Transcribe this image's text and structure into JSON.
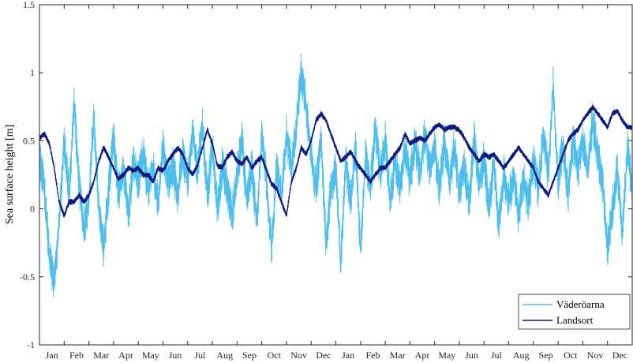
{
  "chart_data": {
    "type": "line",
    "ylabel": "Sea surface height [m]",
    "ylim": [
      -1,
      1.5
    ],
    "yticks": [
      -1,
      -0.5,
      0,
      0.5,
      1,
      1.5
    ],
    "ytick_labels": [
      "-1",
      "-0.5",
      "0",
      "0.5",
      "1",
      "1.5"
    ],
    "xlim_months": [
      0,
      24
    ],
    "xtick_labels": [
      "Jan",
      "Feb",
      "Mar",
      "Apr",
      "May",
      "Jun",
      "Jul",
      "Aug",
      "Sep",
      "Oct",
      "Nov",
      "Dec",
      "Jan",
      "Feb",
      "Mar",
      "Apr",
      "May",
      "Jun",
      "Jul",
      "Aug",
      "Sep",
      "Oct",
      "Nov",
      "Dec"
    ],
    "grid": false,
    "legend": "bottom-right",
    "colors": {
      "vaderoarna": "#4DBEEE",
      "landsort": "#0D1A80"
    },
    "series": [
      {
        "name": "Väderöarna",
        "x": [
          0,
          0.2,
          0.4,
          0.6,
          0.8,
          1,
          1.2,
          1.4,
          1.6,
          1.8,
          2,
          2.2,
          2.4,
          2.6,
          2.8,
          3,
          3.2,
          3.4,
          3.6,
          3.8,
          4,
          4.2,
          4.4,
          4.6,
          4.8,
          5,
          5.2,
          5.4,
          5.6,
          5.8,
          6,
          6.2,
          6.4,
          6.6,
          6.8,
          7,
          7.2,
          7.4,
          7.6,
          7.8,
          8,
          8.2,
          8.4,
          8.6,
          8.8,
          9,
          9.2,
          9.4,
          9.6,
          9.8,
          10,
          10.2,
          10.4,
          10.6,
          10.8,
          11,
          11.2,
          11.4,
          11.6,
          11.8,
          12,
          12.2,
          12.4,
          12.6,
          12.8,
          13,
          13.2,
          13.4,
          13.6,
          13.8,
          14,
          14.2,
          14.4,
          14.6,
          14.8,
          15,
          15.2,
          15.4,
          15.6,
          15.8,
          16,
          16.2,
          16.4,
          16.6,
          16.8,
          17,
          17.2,
          17.4,
          17.6,
          17.8,
          18,
          18.2,
          18.4,
          18.6,
          18.8,
          19,
          19.2,
          19.4,
          19.6,
          19.8,
          20,
          20.2,
          20.4,
          20.6,
          20.8,
          21,
          21.2,
          21.4,
          21.6,
          21.8,
          22,
          22.2,
          22.4,
          22.6,
          22.8,
          23,
          23.2,
          23.4,
          23.6,
          23.8,
          24
        ],
        "values": [
          0.4,
          0.15,
          -0.35,
          -0.55,
          -0.1,
          0.5,
          0.1,
          0.8,
          0.2,
          -0.15,
          0.05,
          0.7,
          0.0,
          -0.3,
          0.15,
          0.55,
          0.1,
          0.3,
          -0.05,
          0.35,
          0.2,
          0.4,
          0.15,
          0.3,
          0.05,
          0.45,
          0.2,
          0.3,
          0.1,
          0.4,
          0.2,
          0.55,
          0.3,
          0.6,
          0.1,
          0.45,
          0.0,
          0.3,
          0.15,
          -0.05,
          0.25,
          0.5,
          0.05,
          0.3,
          -0.1,
          0.55,
          0.2,
          -0.3,
          0.3,
          0.1,
          0.55,
          0.3,
          0.6,
          1.0,
          0.75,
          0.4,
          0.15,
          0.5,
          -0.25,
          0.15,
          0.3,
          -0.4,
          0.35,
          0.05,
          0.45,
          -0.3,
          0.4,
          0.15,
          0.6,
          0.25,
          0.5,
          0.05,
          0.35,
          0.15,
          0.45,
          0.2,
          0.5,
          0.25,
          0.55,
          0.3,
          0.45,
          0.15,
          0.5,
          0.2,
          0.45,
          0.1,
          0.3,
          0.05,
          0.5,
          0.2,
          0.35,
          0.0,
          0.35,
          -0.15,
          0.25,
          0.05,
          0.25,
          -0.05,
          0.2,
          0.05,
          0.35,
          0.15,
          0.55,
          0.25,
          0.9,
          0.2,
          0.45,
          0.1,
          0.5,
          0.3,
          0.5,
          0.3,
          0.65,
          0.4,
          0.2,
          -0.3,
          0.0,
          0.3,
          -0.2,
          0.45,
          0.15
        ]
      },
      {
        "name": "Landsort",
        "x": [
          0,
          0.2,
          0.4,
          0.6,
          0.8,
          1,
          1.2,
          1.4,
          1.6,
          1.8,
          2,
          2.2,
          2.4,
          2.6,
          2.8,
          3,
          3.2,
          3.4,
          3.6,
          3.8,
          4,
          4.2,
          4.4,
          4.6,
          4.8,
          5,
          5.2,
          5.4,
          5.6,
          5.8,
          6,
          6.2,
          6.4,
          6.6,
          6.8,
          7,
          7.2,
          7.4,
          7.6,
          7.8,
          8,
          8.2,
          8.4,
          8.6,
          8.8,
          9,
          9.2,
          9.4,
          9.6,
          9.8,
          10,
          10.2,
          10.4,
          10.6,
          10.8,
          11,
          11.2,
          11.4,
          11.6,
          11.8,
          12,
          12.2,
          12.4,
          12.6,
          12.8,
          13,
          13.2,
          13.4,
          13.6,
          13.8,
          14,
          14.2,
          14.4,
          14.6,
          14.8,
          15,
          15.2,
          15.4,
          15.6,
          15.8,
          16,
          16.2,
          16.4,
          16.6,
          16.8,
          17,
          17.2,
          17.4,
          17.6,
          17.8,
          18,
          18.2,
          18.4,
          18.6,
          18.8,
          19,
          19.2,
          19.4,
          19.6,
          19.8,
          20,
          20.2,
          20.4,
          20.6,
          20.8,
          21,
          21.2,
          21.4,
          21.6,
          21.8,
          22,
          22.2,
          22.4,
          22.6,
          22.8,
          23,
          23.2,
          23.4,
          23.6,
          23.8,
          24
        ],
        "values": [
          0.52,
          0.55,
          0.48,
          0.3,
          0.05,
          -0.05,
          0.05,
          0.05,
          0.1,
          0.05,
          0.1,
          0.2,
          0.35,
          0.45,
          0.38,
          0.3,
          0.22,
          0.25,
          0.3,
          0.28,
          0.3,
          0.25,
          0.25,
          0.2,
          0.3,
          0.28,
          0.35,
          0.4,
          0.45,
          0.4,
          0.3,
          0.25,
          0.32,
          0.45,
          0.58,
          0.48,
          0.32,
          0.3,
          0.38,
          0.42,
          0.35,
          0.33,
          0.38,
          0.3,
          0.35,
          0.38,
          0.28,
          0.18,
          0.15,
          0.05,
          -0.05,
          0.2,
          0.3,
          0.45,
          0.4,
          0.5,
          0.65,
          0.7,
          0.65,
          0.55,
          0.45,
          0.35,
          0.38,
          0.42,
          0.35,
          0.3,
          0.25,
          0.2,
          0.25,
          0.3,
          0.3,
          0.35,
          0.4,
          0.45,
          0.55,
          0.48,
          0.5,
          0.52,
          0.5,
          0.55,
          0.6,
          0.62,
          0.58,
          0.6,
          0.6,
          0.58,
          0.52,
          0.45,
          0.4,
          0.35,
          0.4,
          0.38,
          0.4,
          0.35,
          0.3,
          0.35,
          0.4,
          0.45,
          0.4,
          0.35,
          0.3,
          0.2,
          0.15,
          0.1,
          0.2,
          0.3,
          0.4,
          0.5,
          0.55,
          0.58,
          0.65,
          0.7,
          0.75,
          0.7,
          0.65,
          0.6,
          0.7,
          0.72,
          0.65,
          0.6,
          0.6
        ]
      }
    ]
  }
}
